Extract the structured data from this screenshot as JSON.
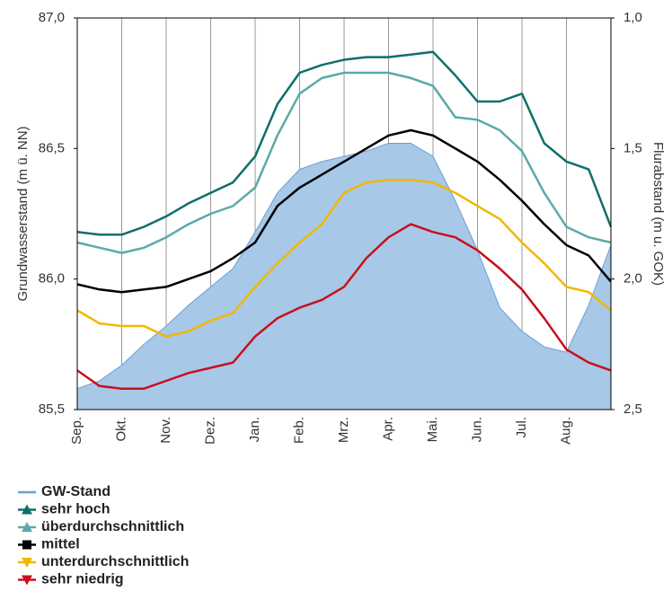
{
  "chart_data": {
    "type": "line",
    "y_label": "Grundwasserstand (m ü. NN)",
    "y2_label": "Flurabstand (m u. GOK)",
    "categories": [
      "Sep.",
      null,
      "Okt.",
      null,
      "Nov.",
      null,
      "Dez.",
      null,
      "Jan.",
      null,
      "Feb.",
      null,
      "Mrz.",
      null,
      "Apr.",
      null,
      "Mai.",
      null,
      "Jun.",
      null,
      "Jul.",
      null,
      "Aug.",
      null,
      null
    ],
    "ylim": [
      85.5,
      87.0
    ],
    "yticks": [
      {
        "value": 85.5,
        "label": "85,5"
      },
      {
        "value": 86.0,
        "label": "86,0"
      },
      {
        "value": 86.5,
        "label": "86,5"
      },
      {
        "value": 87.0,
        "label": "87,0"
      }
    ],
    "y2lim": [
      2.5,
      1.0
    ],
    "y2ticks": [
      {
        "value": 2.5,
        "label": "2,5"
      },
      {
        "value": 2.0,
        "label": "2,0"
      },
      {
        "value": 1.5,
        "label": "1,5"
      },
      {
        "value": 1.0,
        "label": "1,0"
      }
    ],
    "grid": true,
    "series": [
      {
        "name": "GW-Stand",
        "color": "#6a9fd8",
        "fill": "#a8c8e8",
        "area": true,
        "values": [
          85.58,
          85.61,
          85.67,
          85.75,
          85.82,
          85.9,
          85.97,
          86.04,
          86.18,
          86.33,
          86.42,
          86.45,
          86.47,
          86.49,
          86.52,
          86.52,
          86.47,
          86.3,
          86.11,
          85.89,
          85.8,
          85.74,
          85.72,
          85.9,
          86.13
        ]
      },
      {
        "name": "sehr hoch",
        "color": "#0e6f6c",
        "marker": "triangle-up",
        "values": [
          86.18,
          86.17,
          86.17,
          86.2,
          86.24,
          86.29,
          86.33,
          86.37,
          86.47,
          86.67,
          86.79,
          86.82,
          86.84,
          86.85,
          86.85,
          86.86,
          86.87,
          86.78,
          86.68,
          86.68,
          86.71,
          86.52,
          86.45,
          86.42,
          86.2
        ]
      },
      {
        "name": "überdurchschnittlich",
        "color": "#5aaaa8",
        "marker": "triangle-up",
        "values": [
          86.14,
          86.12,
          86.1,
          86.12,
          86.16,
          86.21,
          86.25,
          86.28,
          86.35,
          86.55,
          86.71,
          86.77,
          86.79,
          86.79,
          86.79,
          86.77,
          86.74,
          86.62,
          86.61,
          86.57,
          86.49,
          86.33,
          86.2,
          86.16,
          86.14
        ]
      },
      {
        "name": "mittel",
        "color": "#000000",
        "marker": "square",
        "values": [
          85.98,
          85.96,
          85.95,
          85.96,
          85.97,
          86.0,
          86.03,
          86.08,
          86.14,
          86.28,
          86.35,
          86.4,
          86.45,
          86.5,
          86.55,
          86.57,
          86.55,
          86.5,
          86.45,
          86.38,
          86.3,
          86.21,
          86.13,
          86.09,
          85.99
        ]
      },
      {
        "name": "unterdurchschnittlich",
        "color": "#f0b800",
        "marker": "triangle-down",
        "values": [
          85.88,
          85.83,
          85.82,
          85.82,
          85.78,
          85.8,
          85.84,
          85.87,
          85.97,
          86.06,
          86.14,
          86.21,
          86.33,
          86.37,
          86.38,
          86.38,
          86.37,
          86.33,
          86.28,
          86.23,
          86.14,
          86.06,
          85.97,
          85.95,
          85.88
        ]
      },
      {
        "name": "sehr niedrig",
        "color": "#c8101c",
        "marker": "triangle-down",
        "values": [
          85.65,
          85.59,
          85.58,
          85.58,
          85.61,
          85.64,
          85.66,
          85.68,
          85.78,
          85.85,
          85.89,
          85.92,
          85.97,
          86.08,
          86.16,
          86.21,
          86.18,
          86.16,
          86.11,
          86.04,
          85.96,
          85.85,
          85.73,
          85.68,
          85.65
        ]
      }
    ]
  }
}
